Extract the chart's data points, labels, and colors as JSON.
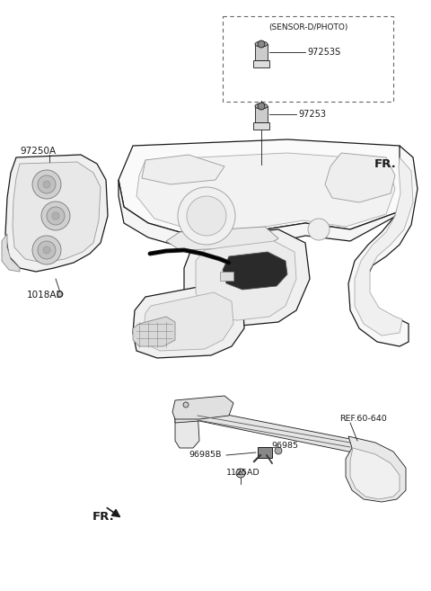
{
  "background_color": "#ffffff",
  "fig_width": 4.8,
  "fig_height": 6.57,
  "dpi": 100,
  "labels": {
    "sensor_box_title": "(SENSOR-D/PHOTO)",
    "l97253S": "97253S",
    "l97253": "97253",
    "l97250A": "97250A",
    "l1018AD": "1018AD",
    "FR_top": "FR.",
    "l96985B": "96985B",
    "l96985": "96985",
    "l1125AD": "1125AD",
    "REF60_640": "REF.60-640",
    "FR_bottom": "FR."
  },
  "line_color": "#1a1a1a",
  "gray_line": "#888888",
  "light_fill": "#f8f8f8",
  "mid_fill": "#e0e0e0",
  "dark_fill": "#444444"
}
